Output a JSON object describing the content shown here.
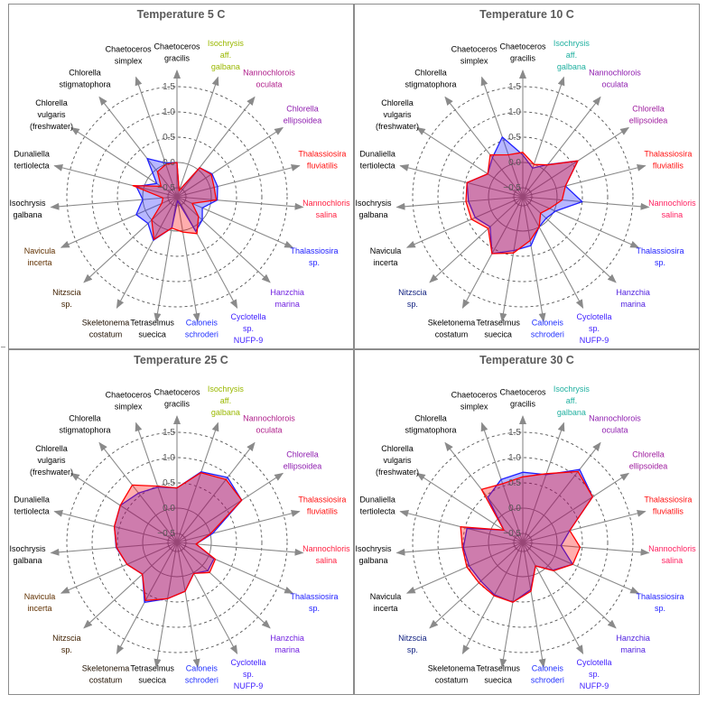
{
  "chart_data": [
    {
      "type": "radar",
      "title": "Temperature 5 C",
      "categories": [
        "Chaetoceros\ngracilis",
        "Isochrysis\naff.\ngalbana",
        "Nannochlorois\noculata",
        "Chlorella\nellipsoidea",
        "Thalassiosira\nfluviatilis",
        "Nannochloris\nsalina",
        "Thalassiosira\nsp.",
        "Hanzchia\nmarina",
        "Cyclotella\nsp.\nNUFP-9",
        "Caloneis\nschroderi",
        "Tetraselmus\nsuecica",
        "Skeletonema\ncostatum",
        "Nitzscia\nsp.",
        "Navicula\nincerta",
        "Isochrysis\ngalbana",
        "Dunaliella\ntertiolecta",
        "Chlorella\nvulgaris\n(freshwater)",
        "Chlorella\nstigmatophora",
        "Chaetoceros\nsimplex"
      ],
      "label_colors": [
        "#000000",
        "#9ab800",
        "#b0208c",
        "#9020b0",
        "#ff1010",
        "#ff2040",
        "#2020ff",
        "#7020e0",
        "#4020ff",
        "#2030ff",
        "#000000",
        "#201000",
        "#402000",
        "#603000",
        "#000000",
        "#000000",
        "#000000",
        "#000000",
        "#000000"
      ],
      "radial_ticks": [
        -0.5,
        0.0,
        0.5,
        1.0,
        1.5
      ],
      "rlim": [
        -0.7,
        1.5
      ],
      "grid": true,
      "series": [
        {
          "color": "#2020ff",
          "values": [
            0.0,
            -0.55,
            0.05,
            0.15,
            0.15,
            0.12,
            -0.13,
            0.0,
            0.1,
            -0.6,
            -0.05,
            0.3,
            0.1,
            0.2,
            0.0,
            0.15,
            -0.2,
            0.28,
            0.03
          ]
        },
        {
          "color": "#ff0000",
          "values": [
            0.0,
            -0.55,
            0.05,
            0.13,
            0.08,
            0.1,
            -0.35,
            -0.1,
            0.15,
            0.03,
            -0.05,
            0.28,
            0.0,
            -0.35,
            -0.4,
            0.22,
            -0.3,
            -0.05,
            0.0
          ]
        }
      ]
    },
    {
      "type": "radar",
      "title": "Temperature 10 C",
      "categories": [
        "Chaetoceros\ngracilis",
        "Isochrysis\naff.\ngalbana",
        "Nannochlorois\noculata",
        "Chlorella\nellipsoidea",
        "Thalassiosira\nfluviatilis",
        "Nannochloris\nsalina",
        "Thalassiosira\nsp.",
        "Hanzchia\nmarina",
        "Cyclotella\nsp.\nNUFP-9",
        "Caloneis\nschroderi",
        "Tetraselmus\nsuecica",
        "Skeletonema\ncostatum",
        "Nitzscia\nsp.",
        "Navicula\nincerta",
        "Isochrysis\ngalbana",
        "Dunaliella\ntertiolecta",
        "Chlorella\nvulgaris\n(freshwater)",
        "Chlorella\nstigmatophora",
        "Chaetoceros\nsimplex"
      ],
      "label_colors": [
        "#000000",
        "#20b0a0",
        "#9020b0",
        "#a020a0",
        "#ff1010",
        "#ff2060",
        "#2020ff",
        "#5020e0",
        "#4020ff",
        "#2030ff",
        "#000000",
        "#000000",
        "#102080",
        "#000000",
        "#000000",
        "#000000",
        "#000000",
        "#000000",
        "#000000"
      ],
      "radial_ticks": [
        -0.5,
        0.0,
        0.5,
        1.0,
        1.5
      ],
      "rlim": [
        -0.7,
        1.5
      ],
      "grid": true,
      "series": [
        {
          "color": "#2020ff",
          "values": [
            0.15,
            -0.08,
            0.13,
            0.62,
            0.19,
            0.5,
            0.03,
            -0.05,
            0.0,
            0.3,
            0.4,
            0.6,
            0.2,
            0.35,
            0.4,
            0.46,
            0.15,
            0.3,
            0.57
          ]
        },
        {
          "color": "#ff0000",
          "values": [
            0.2,
            0.0,
            0.12,
            0.62,
            0.19,
            0.1,
            -0.1,
            -0.2,
            0.0,
            0.2,
            0.45,
            0.6,
            0.25,
            0.43,
            0.45,
            0.46,
            0.15,
            0.37,
            0.2
          ]
        }
      ]
    },
    {
      "type": "radar",
      "title": "Temperature 25 C",
      "categories": [
        "Chaetoceros\ngracilis",
        "Isochrysis\naff.\ngalbana",
        "Nannochlorois\noculata",
        "Chlorella\nellipsoidea",
        "Thalassiosira\nfluviatilis",
        "Nannochloris\nsalina",
        "Thalassiosira\nsp.",
        "Hanzchia\nmarina",
        "Cyclotella\nsp.\nNUFP-9",
        "Caloneis\nschroderi",
        "Tetraselmus\nsuecica",
        "Skeletonema\ncostatum",
        "Nitzscia\nsp.",
        "Navicula\nincerta",
        "Isochrysis\ngalbana",
        "Dunaliella\ntertiolecta",
        "Chlorella\nvulgaris\n(freshwater)",
        "Chlorella\nstigmatophora",
        "Chaetoceros\nsimplex"
      ],
      "label_colors": [
        "#000000",
        "#9ab800",
        "#b0208c",
        "#9020b0",
        "#ff1010",
        "#ff2040",
        "#2020ff",
        "#7020e0",
        "#4020ff",
        "#2030ff",
        "#000000",
        "#201000",
        "#402000",
        "#603000",
        "#000000",
        "#000000",
        "#000000",
        "#000000",
        "#000000"
      ],
      "radial_ticks": [
        -0.5,
        0.0,
        0.5,
        1.0,
        1.5
      ],
      "rlim": [
        -0.7,
        1.5
      ],
      "grid": true,
      "series": [
        {
          "color": "#2020ff",
          "values": [
            0.4,
            0.8,
            0.95,
            0.85,
            0.05,
            -0.3,
            0.12,
            0.15,
            0.02,
            0.3,
            0.45,
            0.67,
            0.25,
            0.4,
            0.53,
            0.6,
            0.66,
            0.56,
            0.48
          ]
        },
        {
          "color": "#ff0000",
          "values": [
            0.4,
            0.78,
            0.9,
            0.85,
            0.0,
            -0.3,
            0.15,
            0.2,
            0.02,
            0.3,
            0.45,
            0.63,
            0.25,
            0.4,
            0.52,
            0.6,
            0.66,
            0.76,
            0.5
          ]
        }
      ]
    },
    {
      "type": "radar",
      "title": "Temperature 30 C",
      "categories": [
        "Chaetoceros\ngracilis",
        "Isochrysis\naff.\ngalbana",
        "Nannochlorois\noculata",
        "Chlorella\nellipsoidea",
        "Thalassiosira\nfluviatilis",
        "Nannochloris\nsalina",
        "Thalassiosira\nsp.",
        "Hanzchia\nmarina",
        "Cyclotella\nsp.\nNUFP-9",
        "Caloneis\nschroderi",
        "Tetraselmus\nsuecica",
        "Skeletonema\ncostatum",
        "Nitzscia\nsp.",
        "Navicula\nincerta",
        "Isochrysis\ngalbana",
        "Dunaliella\ntertiolecta",
        "Chlorella\nvulgaris\n(freshwater)",
        "Chlorella\nstigmatophora",
        "Chaetoceros\nsimplex"
      ],
      "label_colors": [
        "#000000",
        "#20b0a0",
        "#9020b0",
        "#a020a0",
        "#ff1010",
        "#ff2060",
        "#2020ff",
        "#5020e0",
        "#4020ff",
        "#2030ff",
        "#000000",
        "#000000",
        "#102080",
        "#000000",
        "#000000",
        "#000000",
        "#000000",
        "#000000",
        "#000000"
      ],
      "radial_ticks": [
        -0.5,
        0.0,
        0.5,
        1.0,
        1.5
      ],
      "rlim": [
        -0.7,
        1.5
      ],
      "grid": true,
      "series": [
        {
          "color": "#2020ff",
          "values": [
            0.71,
            0.74,
            1.15,
            0.97,
            0.28,
            0.08,
            0.4,
            0.13,
            -0.15,
            0.27,
            0.52,
            0.5,
            0.45,
            0.48,
            0.5,
            0.46,
            -0.23,
            0.45,
            0.64
          ]
        },
        {
          "color": "#ff0000",
          "values": [
            0.62,
            0.76,
            1.1,
            0.97,
            0.28,
            0.46,
            0.4,
            0.15,
            -0.15,
            0.3,
            0.52,
            0.52,
            0.5,
            0.53,
            0.52,
            0.59,
            -0.23,
            0.65,
            0.55
          ]
        }
      ]
    }
  ]
}
